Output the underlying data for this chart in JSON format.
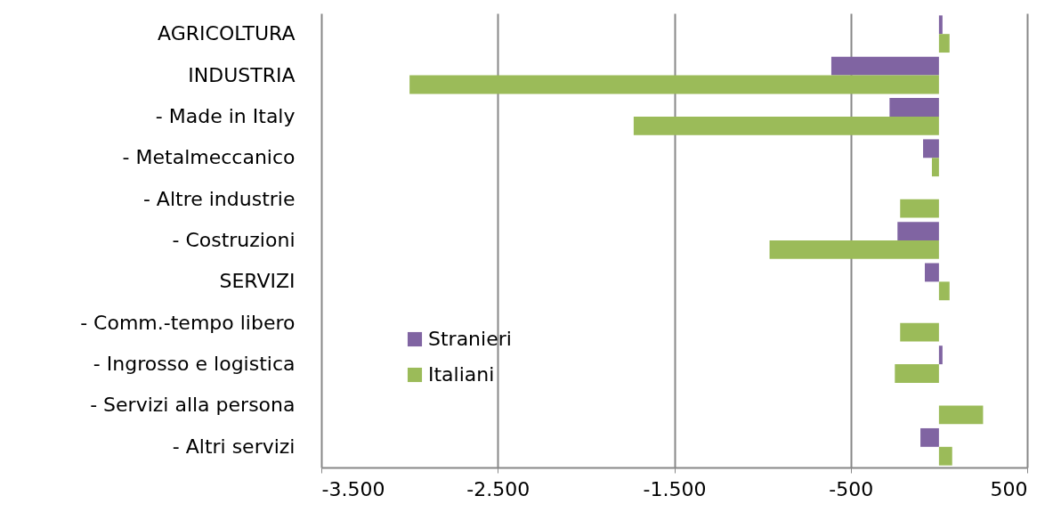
{
  "chart_data": {
    "type": "bar",
    "orientation": "horizontal",
    "categories": [
      "AGRICOLTURA",
      "INDUSTRIA",
      "- Made in Italy",
      "- Metalmeccanico",
      "- Altre industrie",
      "- Costruzioni",
      "SERVIZI",
      "- Comm.-tempo  libero",
      "- Ingrosso e logistica",
      "- Servizi alla persona",
      "- Altri servizi"
    ],
    "series": [
      {
        "name": "Stranieri",
        "color": "#8064a2",
        "values": [
          20,
          -610,
          -280,
          -90,
          0,
          -235,
          -80,
          0,
          20,
          0,
          -105
        ]
      },
      {
        "name": "Italiani",
        "color": "#9bbb59",
        "values": [
          60,
          -3000,
          -1730,
          -40,
          -220,
          -960,
          60,
          -220,
          -250,
          250,
          75
        ]
      }
    ],
    "xlim": [
      -3500,
      500
    ],
    "xticks": [
      {
        "value": -3500,
        "label": "-3.500"
      },
      {
        "value": -2500,
        "label": "-2.500"
      },
      {
        "value": -1500,
        "label": "-1.500"
      },
      {
        "value": -500,
        "label": "-500"
      },
      {
        "value": 500,
        "label": "500"
      }
    ],
    "grid": "x",
    "legend": "left"
  }
}
